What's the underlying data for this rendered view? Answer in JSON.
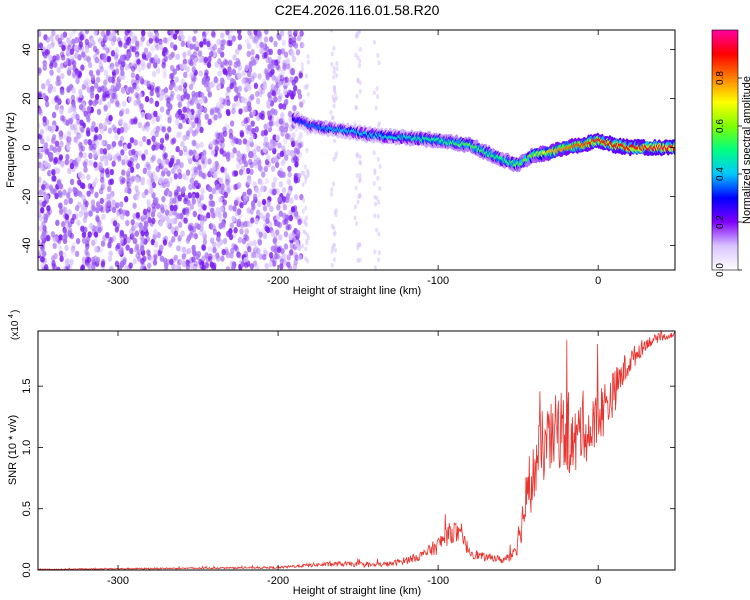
{
  "figure": {
    "title": "C2E4.2026.116.01.58.R20"
  },
  "chart_data": [
    {
      "type": "heatmap",
      "title": "C2E4.2026.116.01.58.R20",
      "xlabel": "Height of straight line (km)",
      "ylabel": "Frequency (Hz)",
      "xlim": [
        -350,
        48
      ],
      "ylim": [
        -50,
        48
      ],
      "x_ticks": [
        -300,
        -200,
        -100,
        0
      ],
      "y_ticks": [
        -40,
        -20,
        0,
        20,
        40
      ],
      "grid": false,
      "colorbar": {
        "label": "Normalized spectral amplitude",
        "range": [
          0.0,
          1.0
        ],
        "ticks": [
          "0.0",
          "0.2",
          "0.4",
          "0.6",
          "0.8"
        ],
        "tick_values": [
          0.0,
          0.2,
          0.4,
          0.6,
          0.8
        ],
        "colors": [
          "#ffffff",
          "#d9c4ff",
          "#8000ff",
          "#0000ff",
          "#00c8ff",
          "#00ff80",
          "#80ff00",
          "#ffff00",
          "#ff8000",
          "#ff0000",
          "#ff00a0"
        ]
      },
      "noise_region": {
        "x_range": [
          -350,
          -185
        ],
        "amplitude": 0.25
      },
      "ridge": {
        "x": [
          -190,
          -180,
          -160,
          -140,
          -120,
          -100,
          -80,
          -60,
          -50,
          -40,
          -30,
          -20,
          -10,
          0,
          10,
          20,
          30,
          40,
          48
        ],
        "y": [
          12,
          9,
          7,
          5,
          4,
          3,
          1,
          -5,
          -7,
          -3,
          -2,
          0,
          1,
          3,
          1,
          0,
          0,
          0,
          0
        ],
        "amplitude": [
          0.3,
          0.35,
          0.4,
          0.42,
          0.45,
          0.5,
          0.55,
          0.5,
          0.55,
          0.6,
          0.75,
          0.8,
          0.85,
          0.88,
          0.9,
          0.9,
          0.92,
          0.93,
          0.95
        ]
      }
    },
    {
      "type": "line",
      "title": "",
      "xlabel": "Height of straight line (km)",
      "ylabel": "SNR (10 * v/v)",
      "y_multiplier": "(x10",
      "y_multiplier_exp": "4",
      "xlim": [
        -350,
        48
      ],
      "ylim": [
        0,
        1.95
      ],
      "x_ticks": [
        -300,
        -200,
        -100,
        0
      ],
      "y_ticks": [
        "0.0",
        "0.5",
        "1.0",
        "1.5"
      ],
      "y_tick_values": [
        0.0,
        0.5,
        1.0,
        1.5
      ],
      "grid": false,
      "series": [
        {
          "color": "#e8332e",
          "x": [
            -350,
            -300,
            -250,
            -200,
            -180,
            -160,
            -140,
            -130,
            -120,
            -110,
            -100,
            -95,
            -90,
            -85,
            -80,
            -75,
            -70,
            -65,
            -60,
            -55,
            -50,
            -45,
            -40,
            -35,
            -30,
            -25,
            -20,
            -15,
            -10,
            -5,
            0,
            5,
            10,
            15,
            20,
            25,
            30,
            35,
            40,
            48
          ],
          "y": [
            0.005,
            0.01,
            0.015,
            0.02,
            0.04,
            0.05,
            0.04,
            0.05,
            0.08,
            0.12,
            0.2,
            0.28,
            0.32,
            0.25,
            0.15,
            0.12,
            0.1,
            0.1,
            0.08,
            0.1,
            0.25,
            0.55,
            0.8,
            1.0,
            1.05,
            1.15,
            1.1,
            1.0,
            1.2,
            1.1,
            1.25,
            1.35,
            1.45,
            1.6,
            1.7,
            1.78,
            1.85,
            1.88,
            1.9,
            1.92
          ],
          "noise": [
            0.003,
            0.005,
            0.006,
            0.008,
            0.015,
            0.02,
            0.02,
            0.02,
            0.03,
            0.04,
            0.07,
            0.09,
            0.09,
            0.07,
            0.05,
            0.04,
            0.03,
            0.03,
            0.03,
            0.05,
            0.12,
            0.2,
            0.26,
            0.3,
            0.3,
            0.32,
            0.3,
            0.3,
            0.28,
            0.26,
            0.25,
            0.22,
            0.18,
            0.14,
            0.1,
            0.08,
            0.05,
            0.04,
            0.03,
            0.02
          ]
        }
      ]
    }
  ]
}
